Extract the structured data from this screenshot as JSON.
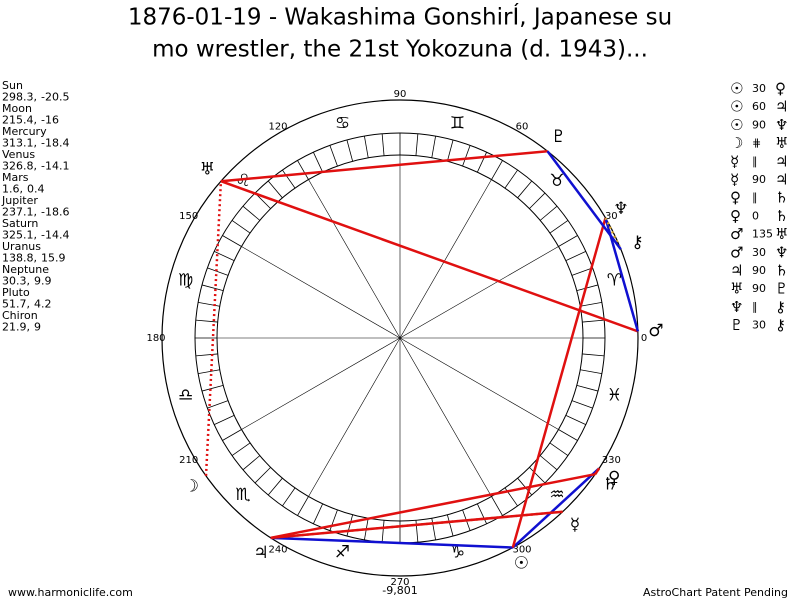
{
  "title": {
    "lines": [
      "1876-01-19 - Wakashima GonshirÍ, Japanese su",
      "mo wrestler, the 21st Yokozuna (d. 1943)..."
    ]
  },
  "planets": [
    {
      "name": "Sun",
      "glyph": "☉",
      "lon": {
        "value": 298.3,
        "label": "298.3,"
      },
      "lat": -20.5
    },
    {
      "name": "Moon",
      "glyph": "☽",
      "lon": {
        "value": 215.4,
        "label": "215.4,"
      },
      "lat": -16.0
    },
    {
      "name": "Mercury",
      "glyph": "☿",
      "lon": {
        "value": 313.1,
        "label": "313.1,"
      },
      "lat": -18.4
    },
    {
      "name": "Venus",
      "glyph": "♀",
      "lon": {
        "value": 326.8,
        "label": "326.8,"
      },
      "lat": -14.1
    },
    {
      "name": "Mars",
      "glyph": "♂",
      "lon": {
        "value": 1.6,
        "label": "1.6,"
      },
      "lat": 0.4
    },
    {
      "name": "Jupiter",
      "glyph": "♃",
      "lon": {
        "value": 237.1,
        "label": "237.1,"
      },
      "lat": -18.6
    },
    {
      "name": "Saturn",
      "glyph": "♄",
      "lon": {
        "value": 325.1,
        "label": "325.1,"
      },
      "lat": -14.4
    },
    {
      "name": "Uranus",
      "glyph": "♅",
      "lon": {
        "value": 138.8,
        "label": "138.8,"
      },
      "lat": 15.9
    },
    {
      "name": "Neptune",
      "glyph": "♆",
      "lon": {
        "value": 30.3,
        "label": "30.3,"
      },
      "lat": 9.9
    },
    {
      "name": "Pluto",
      "glyph": "♇",
      "lon": {
        "value": 51.7,
        "label": "51.7,"
      },
      "lat": 4.2
    },
    {
      "name": "Chiron",
      "glyph": "⚷",
      "lon": {
        "value": 21.9,
        "label": "21.9,"
      },
      "lat": 9.0
    }
  ],
  "aspects": [
    {
      "p1": "☉",
      "aspect": 30,
      "p2": "♀",
      "color": "#1010d0",
      "dotted": false
    },
    {
      "p1": "☉",
      "aspect": 60,
      "p2": "♃",
      "color": "#1010d0",
      "dotted": false
    },
    {
      "p1": "☉",
      "aspect": 90,
      "p2": "♆",
      "color": "#e01010",
      "dotted": false
    },
    {
      "p1": "☽",
      "aspect": "⋕",
      "p2": "♅",
      "color": "#e01010",
      "dotted": true
    },
    {
      "p1": "☿",
      "aspect": "∥",
      "p2": "♃",
      "color": "#d0a030",
      "dotted": true
    },
    {
      "p1": "☿",
      "aspect": 90,
      "p2": "♃",
      "color": "#e01010",
      "dotted": false
    },
    {
      "p1": "♀",
      "aspect": "∥",
      "p2": "♄",
      "color": "#d0a030",
      "dotted": true
    },
    {
      "p1": "♀",
      "aspect": 0,
      "p2": "♄",
      "color": "#e01010",
      "dotted": false
    },
    {
      "p1": "♂",
      "aspect": 135,
      "p2": "♅",
      "color": "#e01010",
      "dotted": false
    },
    {
      "p1": "♂",
      "aspect": 30,
      "p2": "♆",
      "color": "#1010d0",
      "dotted": false
    },
    {
      "p1": "♃",
      "aspect": 90,
      "p2": "♄",
      "color": "#e01010",
      "dotted": false
    },
    {
      "p1": "♅",
      "aspect": 90,
      "p2": "♇",
      "color": "#e01010",
      "dotted": false
    },
    {
      "p1": "♆",
      "aspect": "∥",
      "p2": "⚷",
      "color": "#d0a030",
      "dotted": true
    },
    {
      "p1": "♇",
      "aspect": 30,
      "p2": "⚷",
      "color": "#1010d0",
      "dotted": false
    }
  ],
  "degree_labels": [
    0,
    30,
    60,
    90,
    120,
    150,
    180,
    210,
    240,
    270,
    300,
    330
  ],
  "signs": [
    "♈",
    "♉",
    "♊",
    "♋",
    "♌",
    "♍",
    "♎",
    "♏",
    "♐",
    "♑",
    "♒",
    "♓"
  ],
  "footer": {
    "left": "www.harmoniclife.com",
    "center": "-9,801",
    "right": "AstroChart Patent Pending"
  }
}
